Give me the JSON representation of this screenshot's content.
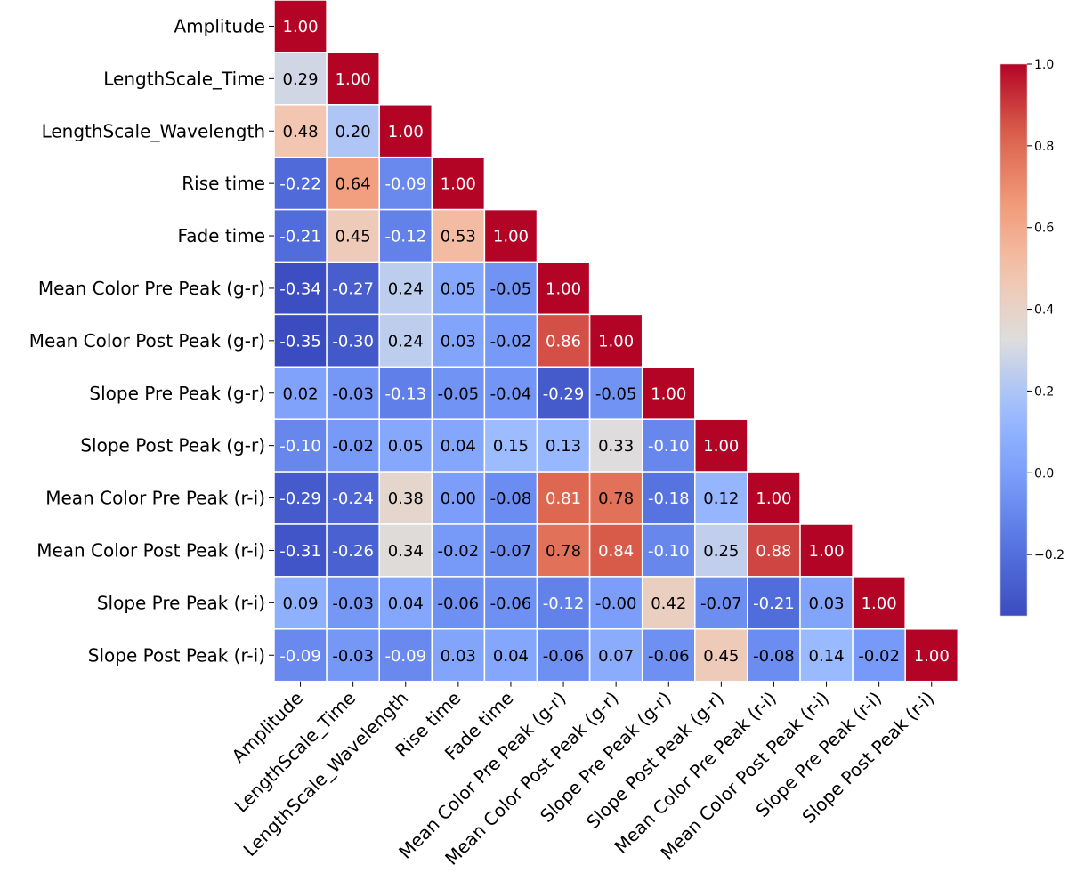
{
  "chart_data": {
    "type": "heatmap",
    "title": "",
    "labels": [
      "Amplitude",
      "LengthScale_Time",
      "LengthScale_Wavelength",
      "Rise time",
      "Fade time",
      "Mean Color Pre Peak (g-r)",
      "Mean Color Post Peak (g-r)",
      "Slope Pre Peak (g-r)",
      "Slope Post Peak (g-r)",
      "Mean Color Pre Peak (r-i)",
      "Mean Color Post Peak (r-i)",
      "Slope Pre Peak (r-i)",
      "Slope Post Peak (r-i)"
    ],
    "matrix": [
      [
        "1.00"
      ],
      [
        "0.29",
        "1.00"
      ],
      [
        "0.48",
        "0.20",
        "1.00"
      ],
      [
        "-0.22",
        "0.64",
        "-0.09",
        "1.00"
      ],
      [
        "-0.21",
        "0.45",
        "-0.12",
        "0.53",
        "1.00"
      ],
      [
        "-0.34",
        "-0.27",
        "0.24",
        "0.05",
        "-0.05",
        "1.00"
      ],
      [
        "-0.35",
        "-0.30",
        "0.24",
        "0.03",
        "-0.02",
        "0.86",
        "1.00"
      ],
      [
        "0.02",
        "-0.03",
        "-0.13",
        "-0.05",
        "-0.04",
        "-0.29",
        "-0.05",
        "1.00"
      ],
      [
        "-0.10",
        "-0.02",
        "0.05",
        "0.04",
        "0.15",
        "0.13",
        "0.33",
        "-0.10",
        "1.00"
      ],
      [
        "-0.29",
        "-0.24",
        "0.38",
        "0.00",
        "-0.08",
        "0.81",
        "0.78",
        "-0.18",
        "0.12",
        "1.00"
      ],
      [
        "-0.31",
        "-0.26",
        "0.34",
        "-0.02",
        "-0.07",
        "0.78",
        "0.84",
        "-0.10",
        "0.25",
        "0.88",
        "1.00"
      ],
      [
        "0.09",
        "-0.03",
        "0.04",
        "-0.06",
        "-0.06",
        "-0.12",
        "-0.00",
        "0.42",
        "-0.07",
        "-0.21",
        "0.03",
        "1.00"
      ],
      [
        "-0.09",
        "-0.03",
        "-0.09",
        "0.03",
        "0.04",
        "-0.06",
        "0.07",
        "-0.06",
        "0.45",
        "-0.08",
        "0.14",
        "-0.02",
        "1.00"
      ]
    ],
    "mask": "upper-triangle",
    "colormap": "coolwarm",
    "vmin": -0.35,
    "vmax": 1.0,
    "colorbar": {
      "ticks": [
        1.0,
        0.8,
        0.6,
        0.4,
        0.2,
        0.0,
        -0.2
      ],
      "tick_labels": [
        "1.0",
        "0.8",
        "0.6",
        "0.4",
        "0.2",
        "0.0",
        "−0.2"
      ],
      "placement": "right"
    },
    "cell_text_colors": {
      "dark": "#000000",
      "light": "#ffffff"
    },
    "grid_color": "#ffffff"
  }
}
